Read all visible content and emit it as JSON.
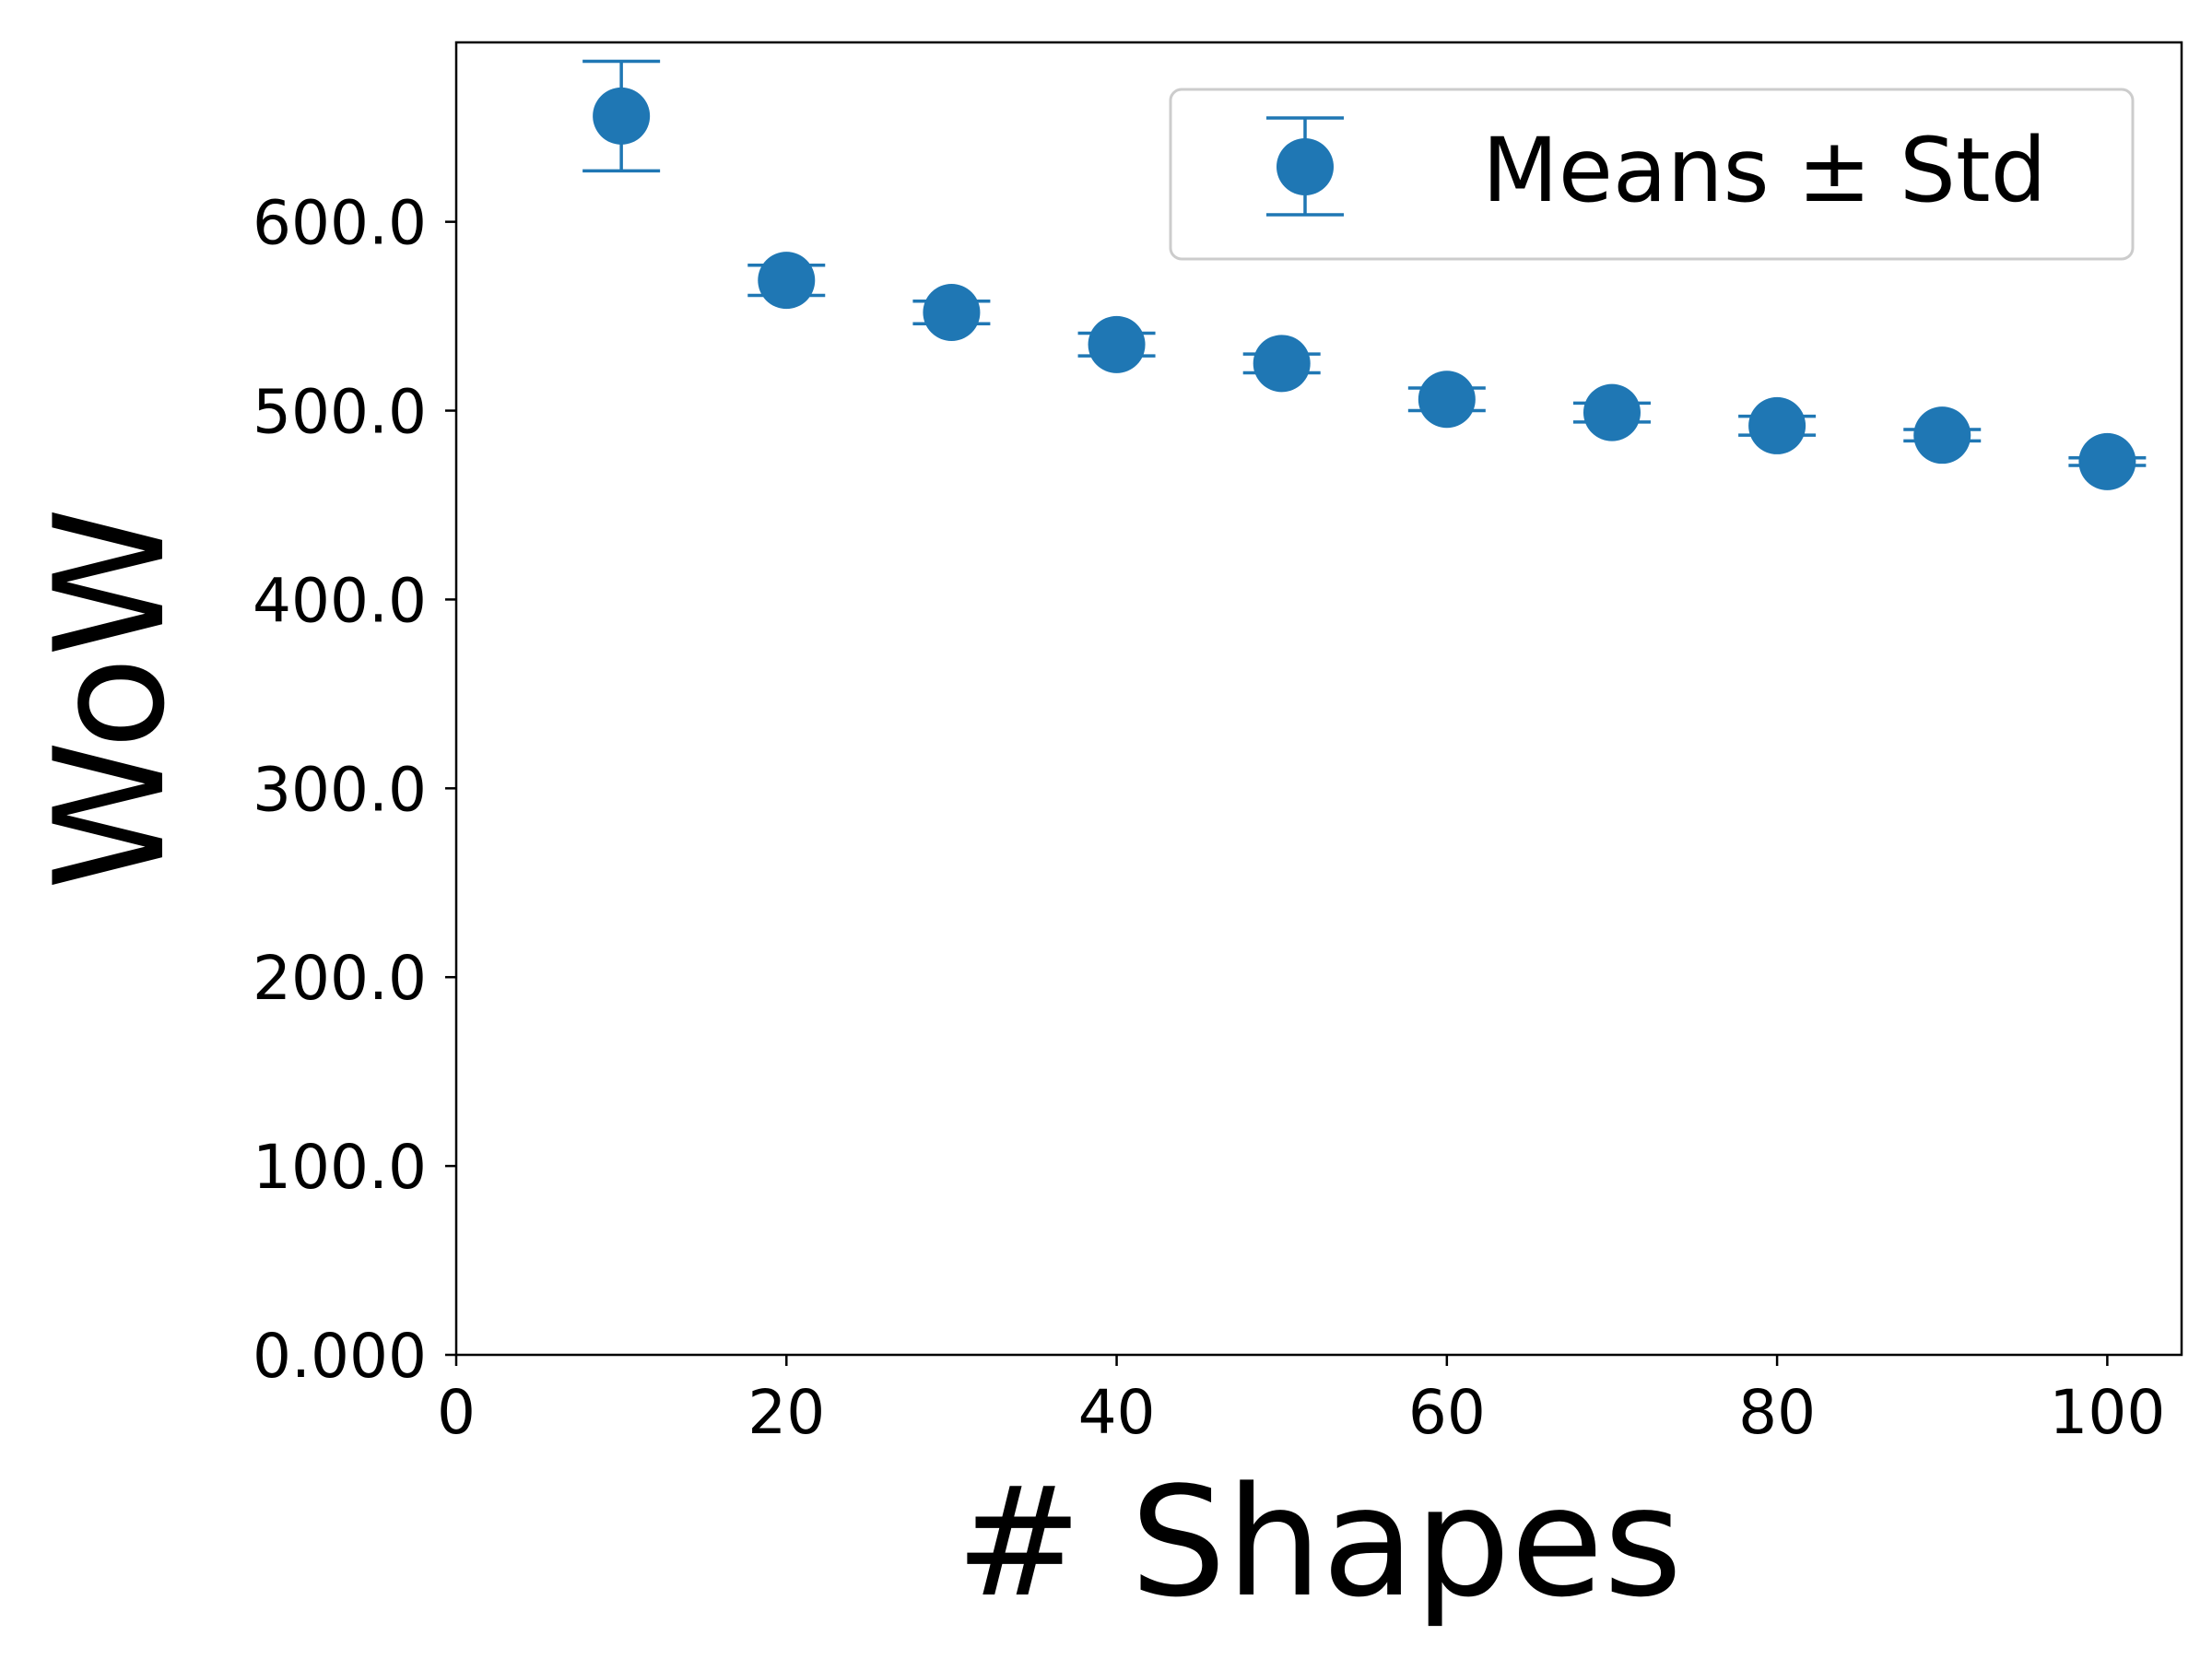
{
  "chart_data": {
    "type": "scatter",
    "xlabel": "# Shapes",
    "ylabel": "WoW",
    "xlim": [
      0,
      104.5
    ],
    "ylim": [
      0,
      695
    ],
    "x_ticks": [
      0,
      20,
      40,
      60,
      80,
      100
    ],
    "x_tick_labels": [
      "0",
      "20",
      "40",
      "60",
      "80",
      "100"
    ],
    "y_ticks": [
      0,
      100,
      200,
      300,
      400,
      500,
      600
    ],
    "y_tick_labels": [
      "0.000",
      "100.0",
      "200.0",
      "300.0",
      "400.0",
      "500.0",
      "600.0"
    ],
    "grid": false,
    "legend_position": "top-right",
    "legend_entries": [
      "Means ± Std"
    ],
    "series": [
      {
        "name": "Means ± Std",
        "color": "#1f77b4",
        "points": [
          {
            "x": 10,
            "y": 656,
            "std": 29
          },
          {
            "x": 20,
            "y": 569,
            "std": 8
          },
          {
            "x": 30,
            "y": 552,
            "std": 6
          },
          {
            "x": 40,
            "y": 535,
            "std": 6
          },
          {
            "x": 50,
            "y": 525,
            "std": 5
          },
          {
            "x": 60,
            "y": 506,
            "std": 6
          },
          {
            "x": 70,
            "y": 499,
            "std": 5
          },
          {
            "x": 80,
            "y": 492,
            "std": 5
          },
          {
            "x": 90,
            "y": 487,
            "std": 3
          },
          {
            "x": 100,
            "y": 473,
            "std": 2
          }
        ]
      }
    ]
  }
}
